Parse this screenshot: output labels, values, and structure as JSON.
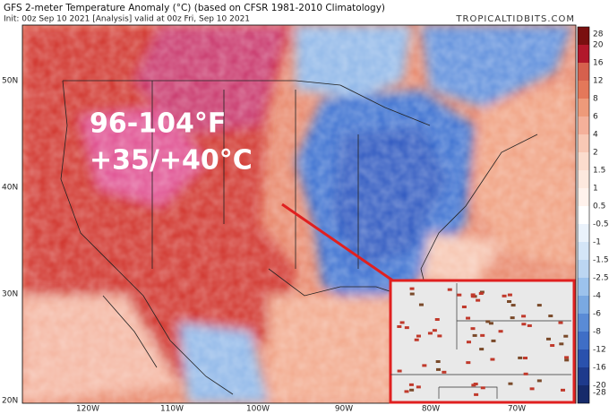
{
  "header": {
    "title": "GFS 2-meter Temperature Anomaly (°C) (based on CFSR 1981-2010 Climatology)",
    "subtitle": "Init: 00z Sep 10 2021   [Analysis]  valid at 00z Fri, Sep 10 2021",
    "watermark": "TROPICALTIDBITS.COM"
  },
  "annotations": [
    "96-104°F",
    "+35/+40°C"
  ],
  "latitude_labels": [
    "50N",
    "40N",
    "30N",
    "20N"
  ],
  "longitude_labels": [
    "120W",
    "110W",
    "100W",
    "90W",
    "80W",
    "70W"
  ],
  "colorbar": {
    "ticks": [
      28,
      20,
      16,
      12,
      8,
      6,
      4,
      2,
      1.5,
      1,
      0.5,
      -0.5,
      -1,
      -1.5,
      -2.5,
      -4,
      -6,
      -8,
      -12,
      -16,
      -20,
      -28
    ]
  }
}
